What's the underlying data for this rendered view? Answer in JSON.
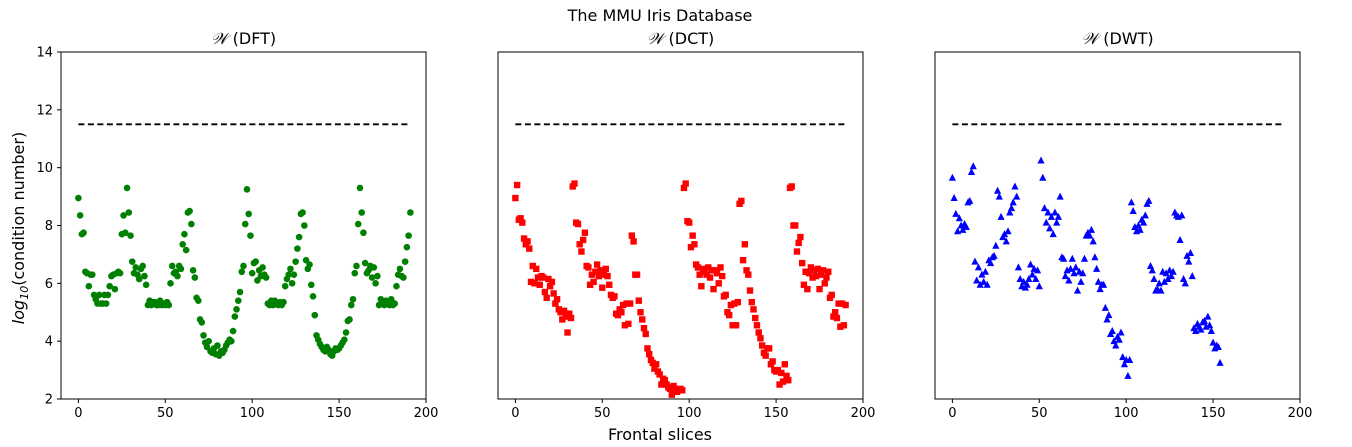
{
  "chart_data": {
    "suptitle": "The MMU Iris Database",
    "xlabel": "Frontal slices",
    "ylabel": {
      "prefix": "log",
      "sub": "10",
      "suffix": "(condition number)"
    },
    "ylim": [
      2,
      14
    ],
    "xlim": [
      -10,
      200
    ],
    "xticks": [
      0,
      50,
      100,
      150,
      200
    ],
    "yticks": [
      2,
      4,
      6,
      8,
      10,
      12,
      14
    ],
    "grid": false,
    "panels": [
      {
        "type": "scatter",
        "title_symbol": "𝒲",
        "title_text": "(DFT)",
        "marker": "circle",
        "color": "#008000",
        "show_yticks": true,
        "reference_line": {
          "y": 11.5,
          "x": [
            0,
            190
          ],
          "color": "#000000",
          "style": "dashed"
        },
        "y": [
          8.95,
          8.35,
          7.7,
          7.75,
          6.4,
          6.35,
          5.9,
          6.3,
          6.3,
          5.6,
          5.45,
          5.3,
          5.6,
          5.3,
          5.3,
          5.6,
          5.3,
          5.6,
          5.9,
          6.25,
          6.3,
          5.8,
          6.35,
          6.4,
          6.35,
          7.7,
          8.35,
          7.75,
          9.3,
          8.45,
          7.65,
          6.75,
          6.35,
          6.55,
          6.3,
          6.15,
          6.5,
          6.6,
          6.25,
          5.95,
          5.25,
          5.4,
          5.25,
          5.35,
          5.35,
          5.25,
          5.25,
          5.4,
          5.25,
          5.3,
          5.25,
          5.35,
          5.25,
          6.0,
          6.6,
          6.35,
          6.4,
          6.25,
          6.6,
          6.5,
          7.35,
          7.7,
          7.15,
          8.45,
          8.5,
          8.05,
          6.45,
          6.2,
          5.5,
          5.4,
          4.75,
          4.65,
          4.2,
          3.95,
          3.8,
          4.0,
          3.65,
          3.6,
          3.75,
          3.55,
          3.85,
          3.5,
          3.65,
          3.6,
          3.7,
          3.85,
          3.95,
          4.05,
          4.0,
          4.35,
          4.85,
          5.1,
          5.4,
          5.7,
          6.4,
          6.6,
          8.05,
          9.25,
          8.4,
          7.65,
          6.35,
          6.7,
          6.75,
          6.1,
          6.45,
          6.25,
          6.55,
          6.3,
          6.2,
          5.3,
          5.25,
          5.4,
          5.25,
          5.4,
          5.3,
          5.25,
          5.35,
          5.25,
          5.35,
          5.9,
          6.15,
          6.3,
          6.5,
          6.0,
          6.3,
          6.75,
          7.2,
          7.6,
          8.4,
          8.45,
          8.0,
          6.8,
          6.5,
          6.65,
          5.95,
          5.55,
          4.9,
          4.2,
          4.05,
          3.9,
          3.8,
          3.7,
          3.65,
          3.8,
          3.7,
          3.55,
          3.5,
          3.65,
          3.75,
          3.7,
          3.75,
          3.85,
          3.95,
          4.05,
          4.3,
          4.7,
          4.75,
          5.25,
          5.45,
          6.35,
          6.6,
          8.05,
          9.3,
          8.45,
          7.75,
          6.7,
          6.35,
          6.45,
          6.6,
          6.2,
          6.55,
          6.0,
          6.25,
          5.25,
          5.45,
          5.3,
          5.25,
          5.4,
          5.3,
          5.25,
          5.45,
          5.25,
          5.3,
          5.9,
          6.3,
          6.5,
          6.25,
          6.2,
          6.75,
          7.25,
          7.65,
          8.45
        ]
      },
      {
        "type": "scatter",
        "title_symbol": "𝒲",
        "title_text": "(DCT)",
        "marker": "square",
        "color": "#ff0000",
        "show_yticks": false,
        "reference_line": {
          "y": 11.5,
          "x": [
            0,
            190
          ],
          "color": "#000000",
          "style": "dashed"
        },
        "y": [
          8.95,
          9.4,
          8.2,
          8.25,
          8.1,
          7.55,
          7.35,
          7.45,
          7.2,
          6.05,
          6.6,
          6.0,
          6.5,
          6.2,
          5.95,
          6.25,
          6.2,
          5.7,
          5.5,
          6.15,
          5.9,
          6.05,
          5.65,
          5.3,
          5.45,
          5.1,
          5.0,
          4.75,
          5.05,
          4.85,
          4.3,
          4.95,
          4.8,
          9.35,
          9.45,
          8.1,
          8.05,
          7.35,
          7.1,
          7.5,
          7.75,
          6.6,
          6.55,
          5.95,
          6.3,
          6.05,
          6.4,
          6.65,
          6.25,
          6.45,
          5.85,
          6.3,
          6.5,
          6.25,
          5.95,
          5.6,
          5.5,
          5.55,
          4.95,
          4.9,
          5.1,
          5.0,
          5.25,
          4.55,
          5.3,
          4.6,
          5.3,
          7.65,
          7.45,
          6.3,
          6.3,
          5.4,
          5.0,
          4.75,
          4.45,
          4.25,
          3.75,
          3.55,
          3.35,
          3.25,
          3.05,
          3.2,
          2.95,
          2.85,
          2.5,
          2.7,
          2.65,
          2.5,
          2.4,
          2.35,
          2.15,
          2.45,
          2.35,
          2.25,
          2.3,
          2.35,
          2.3,
          9.3,
          9.45,
          8.15,
          8.1,
          7.25,
          7.65,
          7.35,
          6.65,
          6.55,
          6.3,
          5.9,
          6.5,
          6.4,
          6.3,
          6.55,
          6.2,
          6.45,
          5.8,
          6.45,
          6.35,
          6.0,
          6.55,
          6.25,
          5.55,
          5.6,
          5.0,
          4.9,
          5.25,
          4.55,
          5.3,
          4.55,
          5.35,
          8.75,
          8.85,
          6.8,
          7.35,
          6.45,
          6.3,
          5.75,
          5.35,
          5.1,
          4.8,
          4.55,
          4.3,
          4.1,
          3.85,
          3.6,
          3.5,
          3.75,
          3.75,
          3.2,
          3.3,
          3.0,
          2.95,
          3.0,
          2.5,
          2.9,
          2.6,
          3.2,
          2.8,
          2.65,
          9.3,
          9.35,
          8.0,
          8.0,
          7.1,
          7.4,
          7.6,
          6.7,
          5.95,
          6.4,
          5.8,
          6.35,
          6.55,
          6.2,
          6.45,
          6.25,
          6.5,
          5.8,
          6.3,
          6.45,
          6.0,
          6.2,
          6.4,
          5.5,
          5.6,
          4.85,
          5.0,
          4.8,
          5.3,
          4.5,
          5.3,
          4.55,
          5.25
        ]
      },
      {
        "type": "scatter",
        "title_symbol": "𝒲",
        "title_text": "(DWT)",
        "marker": "triangle",
        "color": "#0000ff",
        "show_yticks": false,
        "reference_line": {
          "y": 11.5,
          "x": [
            0,
            190
          ],
          "color": "#000000",
          "style": "dashed"
        },
        "y": [
          9.65,
          8.95,
          8.4,
          7.8,
          8.25,
          8.0,
          7.85,
          8.05,
          7.95,
          8.8,
          8.85,
          9.85,
          10.05,
          6.75,
          6.1,
          6.55,
          5.95,
          6.3,
          6.05,
          6.4,
          5.95,
          6.8,
          6.7,
          6.9,
          6.95,
          7.3,
          9.2,
          9.0,
          8.3,
          7.6,
          7.7,
          7.45,
          7.8,
          8.45,
          8.6,
          8.8,
          9.35,
          9.0,
          6.55,
          6.15,
          5.9,
          6.05,
          5.85,
          5.95,
          6.15,
          6.65,
          6.3,
          6.5,
          6.15,
          6.45,
          5.9,
          10.25,
          9.65,
          8.6,
          8.1,
          8.45,
          7.9,
          8.3,
          7.7,
          8.45,
          8.1,
          8.3,
          9.0,
          6.9,
          6.85,
          6.25,
          6.45,
          6.1,
          6.5,
          6.85,
          6.35,
          6.55,
          5.75,
          6.4,
          6.05,
          6.35,
          6.85,
          7.65,
          7.75,
          7.65,
          7.85,
          7.45,
          6.9,
          6.5,
          6.05,
          5.8,
          5.95,
          5.95,
          5.15,
          4.75,
          4.9,
          4.25,
          4.35,
          4.0,
          3.85,
          4.15,
          4.05,
          4.3,
          3.45,
          3.2,
          3.35,
          2.8,
          3.35,
          8.8,
          8.5,
          7.95,
          7.8,
          8.0,
          7.85,
          8.2,
          8.1,
          8.35,
          8.75,
          8.85,
          6.6,
          6.45,
          6.15,
          5.75,
          5.8,
          6.0,
          5.75,
          6.4,
          6.05,
          6.35,
          6.15,
          6.45,
          6.25,
          6.4,
          8.45,
          8.35,
          8.3,
          7.5,
          8.35,
          6.15,
          6.0,
          6.95,
          6.75,
          7.05,
          6.25,
          4.45,
          4.35,
          4.6,
          4.5,
          4.4,
          4.65,
          4.7,
          4.5,
          4.85,
          4.55,
          4.35,
          3.95,
          3.75,
          3.85,
          3.8,
          3.25
        ]
      }
    ]
  }
}
